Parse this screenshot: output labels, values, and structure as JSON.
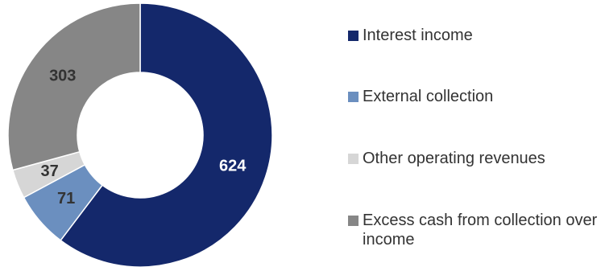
{
  "chart_data": {
    "type": "pie",
    "donut": true,
    "title": "",
    "categories": [
      "Interest income",
      "External collection",
      "Other operating revenues",
      "Excess cash from collection over income"
    ],
    "values": [
      624,
      71,
      37,
      303
    ],
    "colors": [
      "#14286b",
      "#6b8fbf",
      "#d6d6d6",
      "#868686"
    ],
    "label_colors": [
      "#ffffff",
      "#333333",
      "#333333",
      "#333333"
    ],
    "legend": {
      "position": "right",
      "items": [
        {
          "label": "Interest income",
          "color": "#14286b"
        },
        {
          "label": "External collection",
          "color": "#6b8fbf"
        },
        {
          "label": "Other operating revenues",
          "color": "#d6d6d6"
        },
        {
          "label": "Excess cash from collection over income",
          "color": "#868686"
        }
      ]
    }
  }
}
